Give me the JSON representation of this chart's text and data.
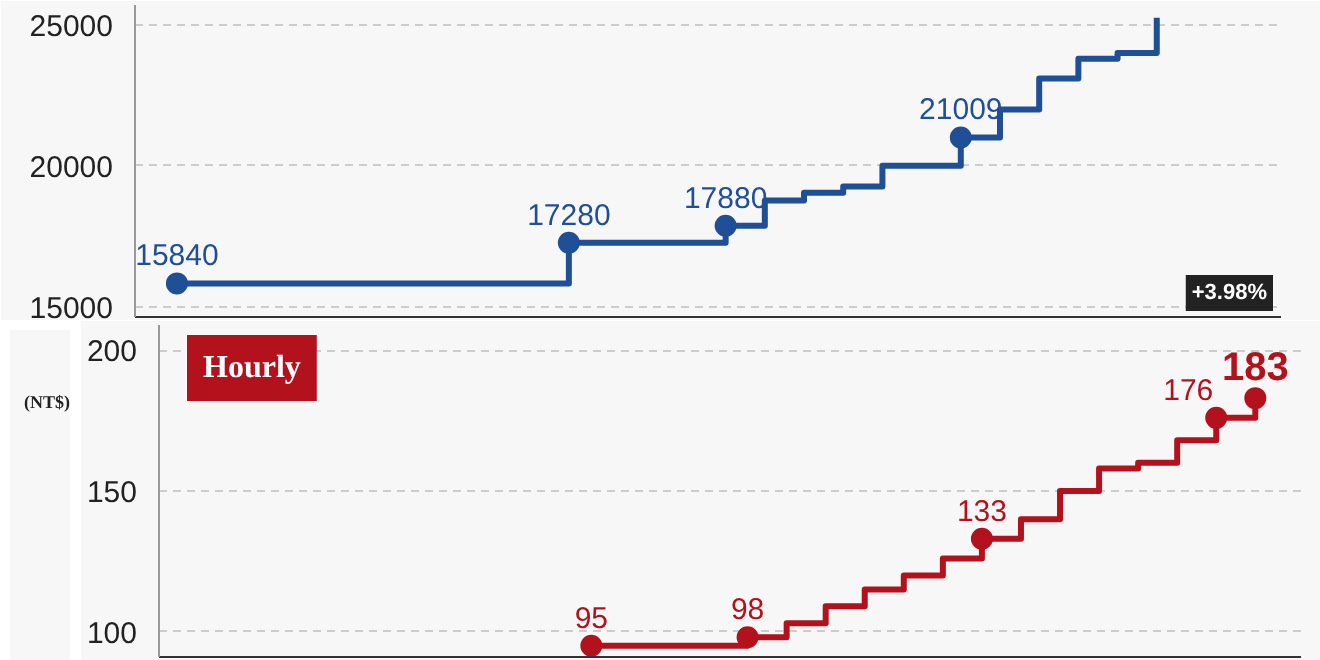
{
  "chart_data": [
    {
      "type": "step",
      "categories": [
        null,
        null,
        null,
        null,
        null,
        null,
        null,
        null,
        null,
        null,
        null,
        null,
        null,
        null,
        null,
        null,
        null,
        null,
        null,
        null,
        null,
        null,
        null,
        null,
        null,
        null
      ],
      "series": [
        {
          "color": "#1f4f96",
          "values": [
            15840,
            15840,
            15840,
            15840,
            15840,
            15840,
            15840,
            15840,
            15840,
            15840,
            17280,
            17280,
            17280,
            17280,
            17880,
            18780,
            19047,
            19273,
            20008,
            20008,
            21009,
            22000,
            23100,
            23800,
            24000,
            25250
          ],
          "value_labels": [
            "15840",
            null,
            null,
            null,
            null,
            null,
            null,
            null,
            null,
            null,
            "17280",
            null,
            null,
            null,
            "17880",
            null,
            null,
            null,
            null,
            null,
            "21009",
            null,
            null,
            null,
            null,
            null
          ]
        }
      ],
      "ylim": [
        14650,
        25700
      ],
      "yticks": [
        15000,
        20000,
        25000
      ],
      "grid": "y",
      "tick_labels": "y",
      "annotations": [
        "+3.98%"
      ]
    },
    {
      "type": "step",
      "title": "Hourly",
      "ylabel": "(NT$)",
      "categories": [
        null,
        null,
        null,
        null,
        null,
        null,
        null,
        null,
        null,
        null,
        null,
        null,
        null,
        null,
        null,
        null,
        null,
        null
      ],
      "series": [
        {
          "color": "#b3121c",
          "values": [
            95,
            95,
            95,
            95,
            98,
            103,
            109,
            115,
            120,
            126,
            133,
            140,
            150,
            158,
            160,
            168,
            176,
            183
          ],
          "value_labels": [
            "95",
            null,
            null,
            null,
            "98",
            null,
            null,
            null,
            null,
            null,
            "133",
            null,
            null,
            null,
            null,
            null,
            "176",
            "183"
          ]
        }
      ],
      "ylim": [
        91,
        209
      ],
      "yticks": [
        100,
        150,
        200
      ],
      "grid": "y",
      "tick_labels": "y"
    }
  ]
}
